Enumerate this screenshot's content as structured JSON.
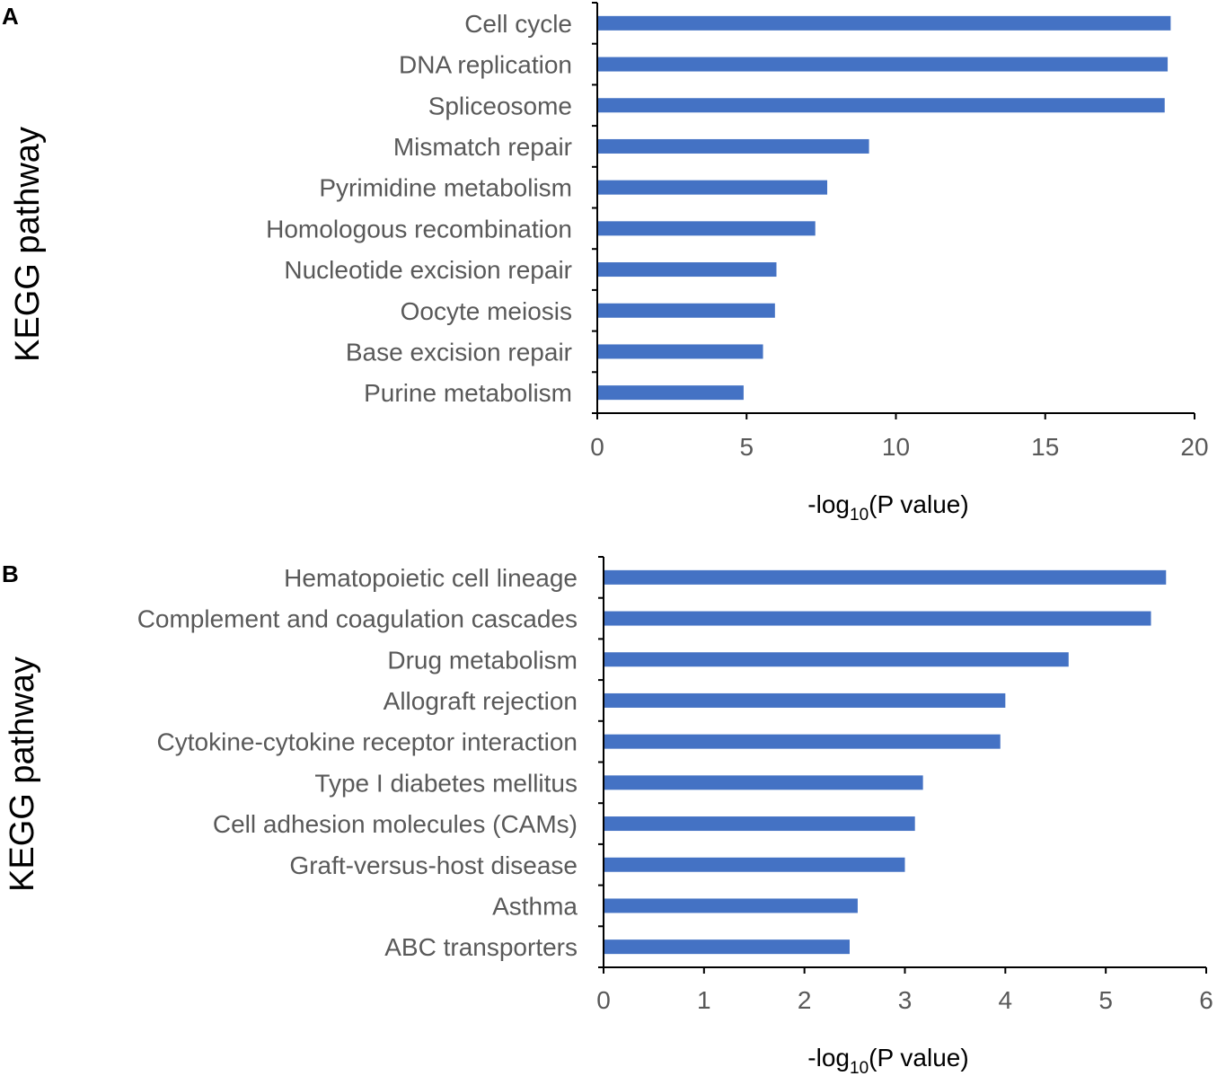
{
  "chart_data": [
    {
      "panel": "A",
      "type": "bar",
      "orientation": "horizontal",
      "ylabel": "KEGG pathway",
      "xlabel_prefix": "-log",
      "xlabel_sub": "10",
      "xlabel_suffix": "(P value)",
      "categories": [
        "Cell cycle",
        "DNA replication",
        "Spliceosome",
        "Mismatch repair",
        "Pyrimidine metabolism",
        "Homologous recombination",
        "Nucleotide excision repair",
        "Oocyte meiosis",
        "Base excision repair",
        "Purine metabolism"
      ],
      "values": [
        19.2,
        19.1,
        19.0,
        9.1,
        7.7,
        7.3,
        6.0,
        5.95,
        5.55,
        4.9
      ],
      "xlim": [
        0,
        20
      ],
      "xticks": [
        "0",
        "5",
        "10",
        "15",
        "20"
      ],
      "bar_color": "#4472C4"
    },
    {
      "panel": "B",
      "type": "bar",
      "orientation": "horizontal",
      "ylabel": "KEGG pathway",
      "xlabel_prefix": "-log",
      "xlabel_sub": "10",
      "xlabel_suffix": "(P value)",
      "categories": [
        "Hematopoietic cell lineage",
        "Complement and coagulation cascades",
        "Drug metabolism",
        "Allograft rejection",
        "Cytokine-cytokine receptor interaction",
        "Type I diabetes mellitus",
        "Cell adhesion molecules (CAMs)",
        "Graft-versus-host disease",
        "Asthma",
        "ABC transporters"
      ],
      "values": [
        5.6,
        5.45,
        4.63,
        4.0,
        3.95,
        3.18,
        3.1,
        3.0,
        2.53,
        2.45
      ],
      "xlim": [
        0,
        6
      ],
      "xticks": [
        "0",
        "1",
        "2",
        "3",
        "4",
        "5",
        "6"
      ],
      "bar_color": "#4472C4"
    }
  ]
}
